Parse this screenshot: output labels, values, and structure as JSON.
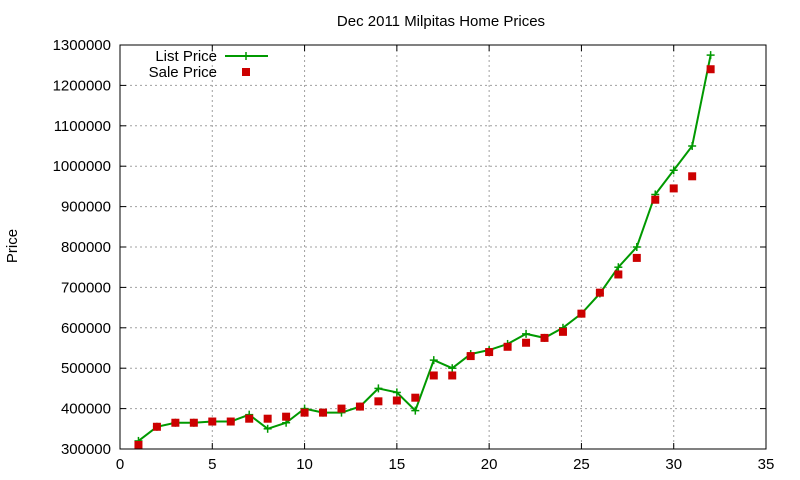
{
  "chart_data": {
    "type": "line",
    "title": "Dec 2011 Milpitas Home Prices",
    "xlabel": "",
    "ylabel": "Price",
    "xlim": [
      0,
      35
    ],
    "ylim": [
      300000,
      1300000
    ],
    "xticks": [
      0,
      5,
      10,
      15,
      20,
      25,
      30,
      35
    ],
    "yticks": [
      300000,
      400000,
      500000,
      600000,
      700000,
      800000,
      900000,
      1000000,
      1100000,
      1200000,
      1300000
    ],
    "grid": true,
    "legend_position": "top-left",
    "series": [
      {
        "name": "List Price",
        "style": "line-plus",
        "color": "#009900",
        "x": [
          1,
          2,
          3,
          4,
          5,
          6,
          7,
          8,
          9,
          10,
          11,
          12,
          13,
          14,
          15,
          16,
          17,
          18,
          19,
          20,
          21,
          22,
          23,
          24,
          25,
          26,
          27,
          28,
          29,
          30,
          31,
          32
        ],
        "y": [
          320000,
          355000,
          365000,
          365000,
          368000,
          368000,
          385000,
          350000,
          365000,
          400000,
          390000,
          390000,
          405000,
          450000,
          440000,
          395000,
          520000,
          500000,
          535000,
          545000,
          560000,
          585000,
          575000,
          600000,
          635000,
          685000,
          750000,
          800000,
          930000,
          990000,
          1050000,
          1275000
        ]
      },
      {
        "name": "Sale Price",
        "style": "square-markers",
        "color": "#cc0000",
        "x": [
          1,
          2,
          3,
          4,
          5,
          6,
          7,
          8,
          9,
          10,
          11,
          12,
          13,
          14,
          15,
          16,
          17,
          18,
          19,
          20,
          21,
          22,
          23,
          24,
          25,
          26,
          27,
          28,
          29,
          30,
          31,
          32
        ],
        "y": [
          310000,
          355000,
          365000,
          365000,
          368000,
          368000,
          375000,
          375000,
          380000,
          390000,
          390000,
          400000,
          405000,
          418000,
          420000,
          427000,
          482000,
          482000,
          530000,
          540000,
          553000,
          563000,
          575000,
          590000,
          635000,
          687000,
          732000,
          773000,
          917000,
          945000,
          975000,
          1240000
        ]
      }
    ]
  }
}
